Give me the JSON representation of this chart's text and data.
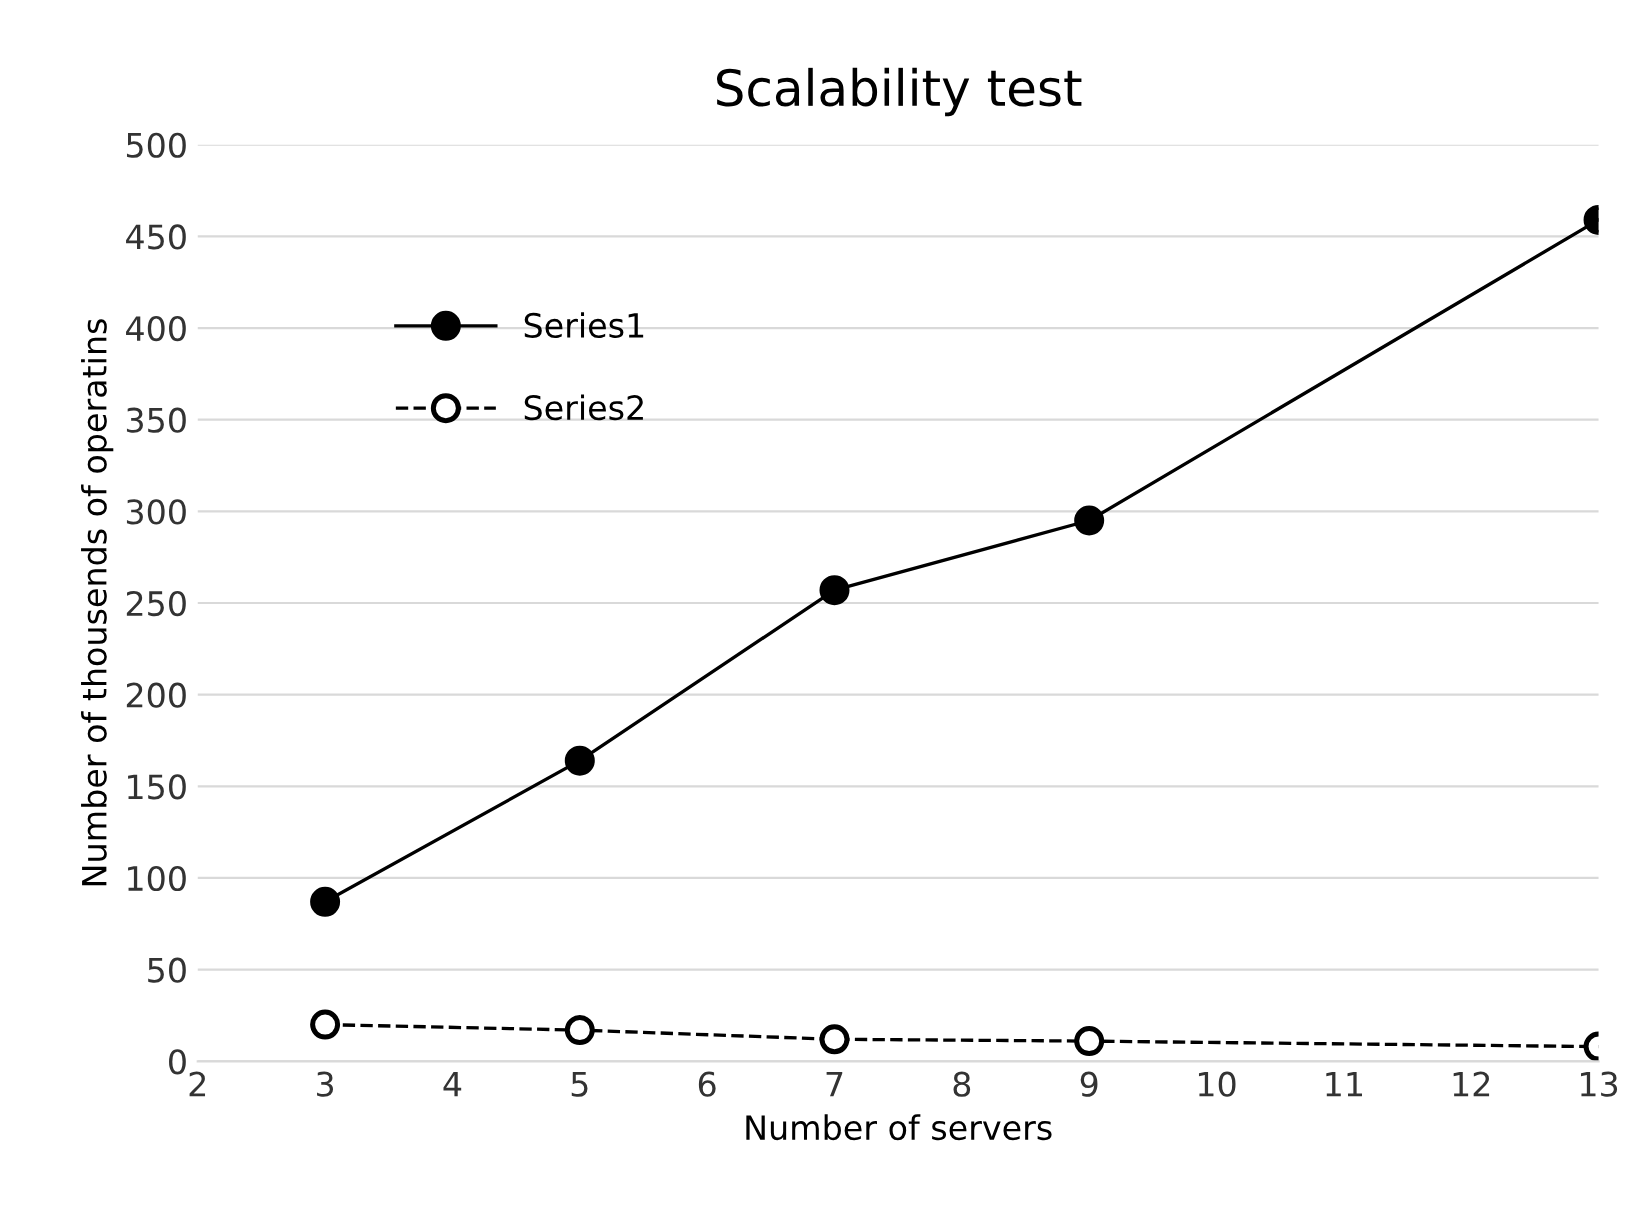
{
  "chart_data": {
    "type": "line",
    "title": "Scalability test",
    "xlabel": "Number of servers",
    "ylabel": "Number of thousends of operatins",
    "x": [
      3,
      5,
      7,
      9,
      13
    ],
    "series": [
      {
        "name": "Series1",
        "color": "#000000",
        "values": [
          87,
          164,
          257,
          295,
          459
        ],
        "marker": "circle",
        "line_style": "solid"
      },
      {
        "name": "Series2",
        "color": "#000000",
        "values": [
          20,
          17,
          12,
          11,
          8
        ],
        "marker": "circle",
        "line_style": "dashed"
      }
    ],
    "xlim": [
      2,
      13
    ],
    "xticks": [
      2,
      3,
      4,
      5,
      6,
      7,
      8,
      9,
      10,
      11,
      12,
      13
    ],
    "ylim": [
      0,
      500
    ],
    "yticks": [
      0,
      50,
      100,
      150,
      200,
      250,
      300,
      350,
      400,
      450,
      500
    ],
    "grid": "y",
    "legend": "upper left"
  }
}
